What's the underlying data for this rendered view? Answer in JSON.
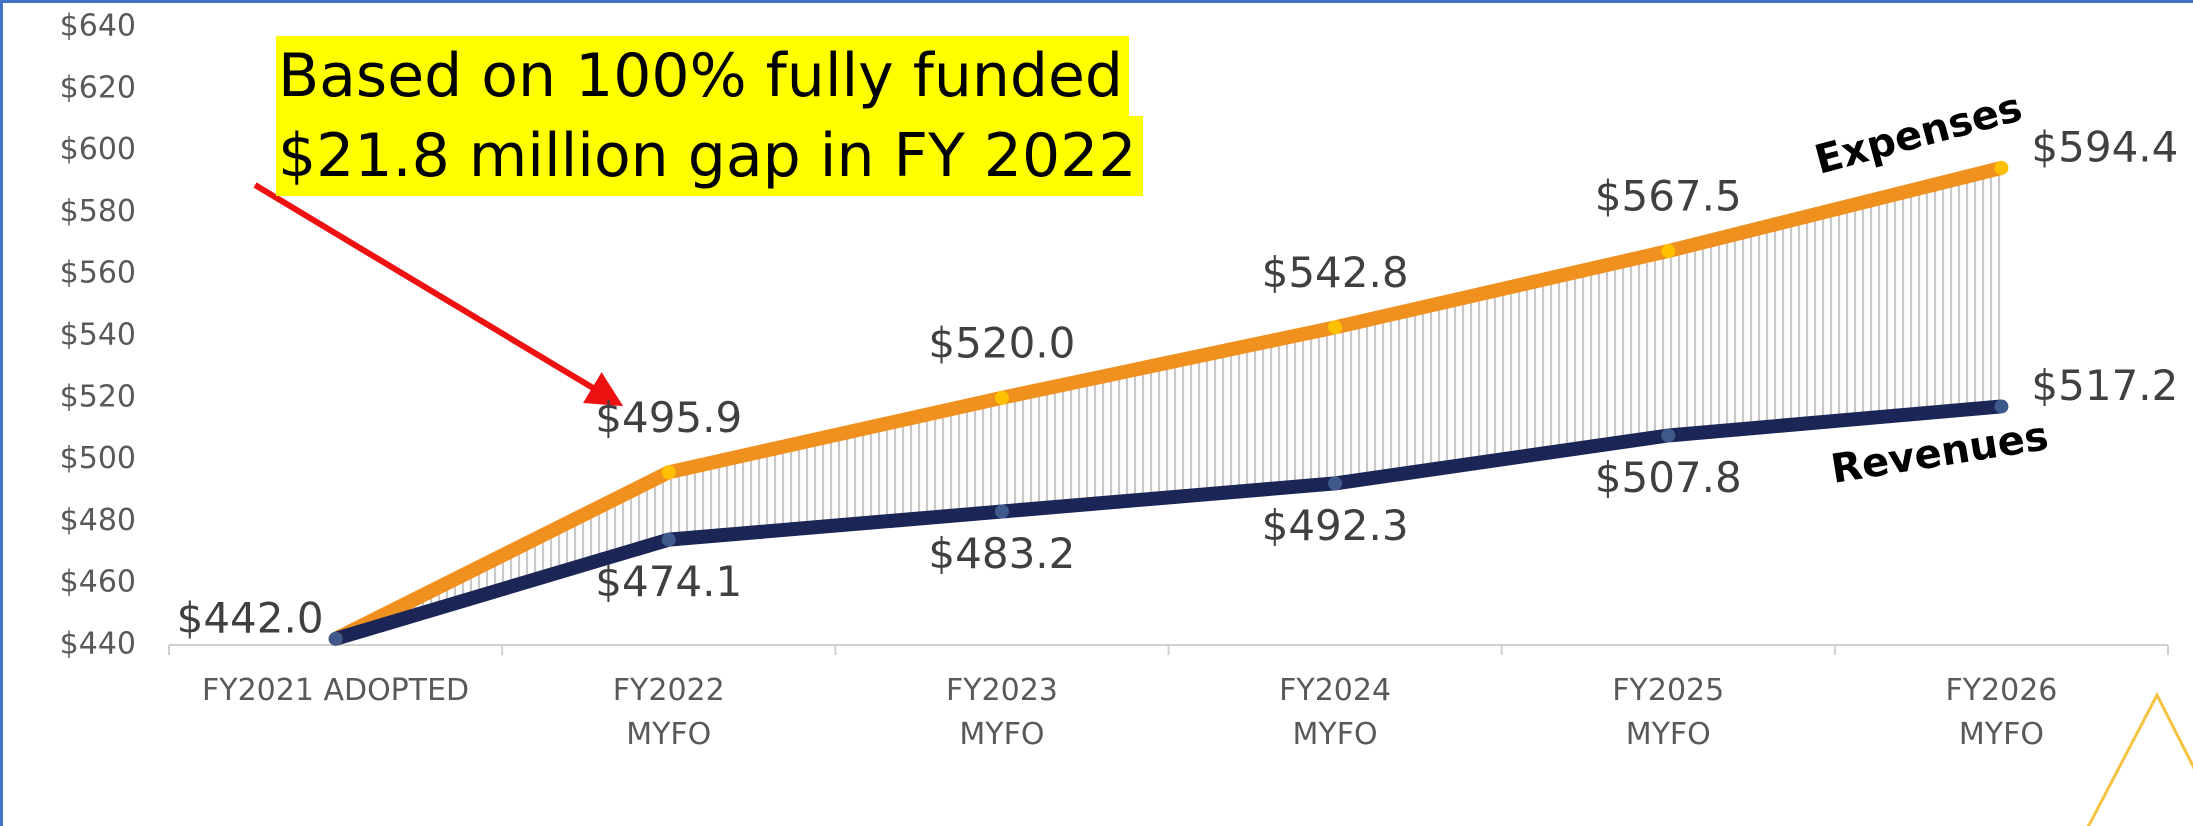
{
  "chart_data": {
    "type": "line",
    "categories": [
      "FY2021 ADOPTED",
      "FY2022\nMYFO",
      "FY2023\nMYFO",
      "FY2024\nMYFO",
      "FY2025\nMYFO",
      "FY2026\nMYFO"
    ],
    "series": [
      {
        "name": "Expenses",
        "color": "#f0901e",
        "values": [
          442.0,
          495.9,
          520.0,
          542.8,
          567.5,
          594.4
        ],
        "value_labels": [
          "$442.0",
          "$495.9",
          "$520.0",
          "$542.8",
          "$567.5",
          "$594.4"
        ]
      },
      {
        "name": "Revenues",
        "color": "#1b2657",
        "values": [
          442.0,
          474.1,
          483.2,
          492.3,
          507.8,
          517.2
        ],
        "value_labels": [
          null,
          "$474.1",
          "$483.2",
          "$492.3",
          "$507.8",
          "$517.2"
        ]
      }
    ],
    "ylim": [
      440,
      640
    ],
    "yticks": [
      {
        "value": 440,
        "label": "$440"
      },
      {
        "value": 460,
        "label": "$460"
      },
      {
        "value": 480,
        "label": "$480"
      },
      {
        "value": 500,
        "label": "$500"
      },
      {
        "value": 520,
        "label": "$520"
      },
      {
        "value": 540,
        "label": "$540"
      },
      {
        "value": 560,
        "label": "$560"
      },
      {
        "value": 580,
        "label": "$580"
      },
      {
        "value": 600,
        "label": "$600"
      },
      {
        "value": 620,
        "label": "$620"
      },
      {
        "value": 640,
        "label": "$640"
      }
    ],
    "annotations": [
      "Based on 100% fully funded",
      "$21.8 million gap in FY 2022"
    ]
  }
}
